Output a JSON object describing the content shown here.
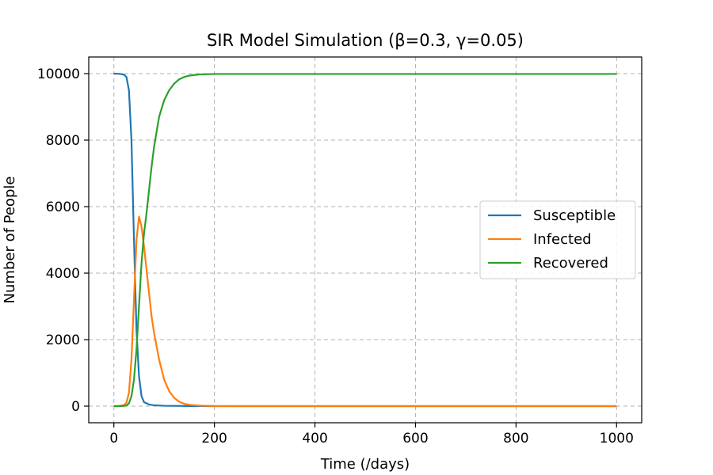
{
  "chart_data": {
    "type": "line",
    "title": "SIR Model Simulation (β=0.3, γ=0.05)",
    "xlabel": "Time (/days)",
    "ylabel": "Number of People",
    "xlim": [
      -50,
      1050
    ],
    "ylim": [
      -500,
      10500
    ],
    "xticks": [
      0,
      200,
      400,
      600,
      800,
      1000
    ],
    "yticks": [
      0,
      2000,
      4000,
      6000,
      8000,
      10000
    ],
    "grid": true,
    "legend_position": "center-right",
    "series": [
      {
        "name": "Susceptible",
        "color": "#1f77b4",
        "x": [
          0,
          10,
          20,
          25,
          30,
          35,
          40,
          45,
          50,
          55,
          60,
          70,
          80,
          100,
          150,
          200,
          1000
        ],
        "y": [
          10000,
          9995,
          9970,
          9900,
          9500,
          8000,
          5000,
          2300,
          900,
          300,
          120,
          50,
          25,
          10,
          3,
          0,
          0
        ]
      },
      {
        "name": "Infected",
        "color": "#ff7f0e",
        "x": [
          0,
          10,
          20,
          25,
          30,
          35,
          40,
          45,
          50,
          55,
          60,
          65,
          70,
          75,
          80,
          90,
          100,
          110,
          120,
          130,
          140,
          150,
          170,
          200,
          250,
          1000
        ],
        "y": [
          0,
          5,
          30,
          100,
          400,
          1400,
          3200,
          5000,
          5700,
          5400,
          4800,
          4100,
          3400,
          2700,
          2200,
          1400,
          800,
          450,
          250,
          130,
          70,
          40,
          15,
          3,
          0,
          0
        ]
      },
      {
        "name": "Recovered",
        "color": "#2ca02c",
        "x": [
          0,
          10,
          20,
          25,
          30,
          35,
          40,
          45,
          50,
          55,
          60,
          65,
          70,
          75,
          80,
          90,
          100,
          110,
          120,
          130,
          140,
          150,
          170,
          200,
          250,
          1000
        ],
        "y": [
          0,
          0,
          5,
          20,
          80,
          300,
          800,
          1700,
          3000,
          4300,
          5200,
          5800,
          6500,
          7200,
          7800,
          8700,
          9200,
          9500,
          9700,
          9830,
          9900,
          9940,
          9975,
          9990,
          9990,
          9990
        ]
      }
    ]
  }
}
